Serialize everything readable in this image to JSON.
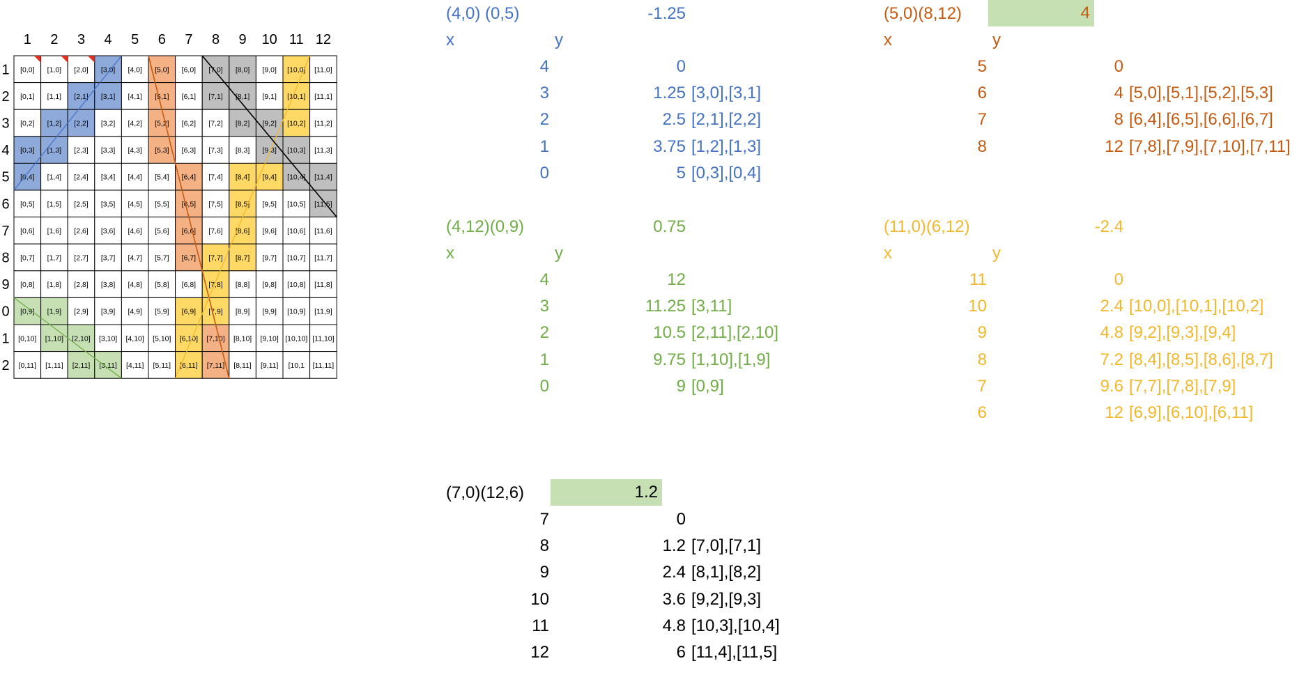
{
  "grid": {
    "cols": [
      "1",
      "2",
      "3",
      "4",
      "5",
      "6",
      "7",
      "8",
      "9",
      "10",
      "11",
      "12"
    ],
    "rows": [
      "1",
      "2",
      "3",
      "4",
      "5",
      "6",
      "7",
      "8",
      "9",
      "0",
      "1",
      "2"
    ],
    "cells": [
      [
        "[0,0]",
        "[1,0]",
        "[2,0]",
        "[3,0]",
        "[4,0]",
        "[5,0]",
        "[6,0]",
        "[7,0]",
        "[8,0]",
        "[9,0]",
        "[10,0]",
        "[11,0]"
      ],
      [
        "[0,1]",
        "[1,1]",
        "[2,1]",
        "[3,1]",
        "[4,1]",
        "[5,1]",
        "[6,1]",
        "[7,1]",
        "[8,1]",
        "[9,1]",
        "[10,1]",
        "[11,1]"
      ],
      [
        "[0,2]",
        "[1,2]",
        "[2,2]",
        "[3,2]",
        "[4,2]",
        "[5,2]",
        "[6,2]",
        "[7,2]",
        "[8,2]",
        "[9,2]",
        "[10,2]",
        "[11,2]"
      ],
      [
        "[0,3]",
        "[1,3]",
        "[2,3]",
        "[3,3]",
        "[4,3]",
        "[5,3]",
        "[6,3]",
        "[7,3]",
        "[8,3]",
        "[9,3]",
        "[10,3]",
        "[11,3]"
      ],
      [
        "[0,4]",
        "[1,4]",
        "[2,4]",
        "[3,4]",
        "[4,4]",
        "[5,4]",
        "[6,4]",
        "[7,4]",
        "[8,4]",
        "[9,4]",
        "[10,4]",
        "[11,4]"
      ],
      [
        "[0,5]",
        "[1,5]",
        "[2,5]",
        "[3,5]",
        "[4,5]",
        "[5,5]",
        "[6,5]",
        "[7,5]",
        "[8,5]",
        "[9,5]",
        "[10,5]",
        "[11,5]"
      ],
      [
        "[0,6]",
        "[1,6]",
        "[2,6]",
        "[3,6]",
        "[4,6]",
        "[5,6]",
        "[6,6]",
        "[7,6]",
        "[8,6]",
        "[9,6]",
        "[10,6]",
        "[11,6]"
      ],
      [
        "[0,7]",
        "[1,7]",
        "[2,7]",
        "[3,7]",
        "[4,7]",
        "[5,7]",
        "[6,7]",
        "[7,7]",
        "[8,7]",
        "[9,7]",
        "[10,7]",
        "[11,7]"
      ],
      [
        "[0,8]",
        "[1,8]",
        "[2,8]",
        "[3,8]",
        "[4,8]",
        "[5,8]",
        "[6,8]",
        "[7,8]",
        "[8,8]",
        "[9,8]",
        "[10,8]",
        "[11,8]"
      ],
      [
        "[0,9]",
        "[1,9]",
        "[2,9]",
        "[3,9]",
        "[4,9]",
        "[5,9]",
        "[6,9]",
        "[7,9]",
        "[8,9]",
        "[9,9]",
        "[10,9]",
        "[11,9]"
      ],
      [
        "[0,10]",
        "[1,10]",
        "[2,10]",
        "[3,10]",
        "[4,10]",
        "[5,10]",
        "[6,10]",
        "[7,10]",
        "[8,10]",
        "[9,10]",
        "[10,10]",
        "[11,10]"
      ],
      [
        "[0,11]",
        "[1,11]",
        "[2,11]",
        "[3,11]",
        "[4,11]",
        "[5,11]",
        "[6,11]",
        "[7,11]",
        "[8,11]",
        "[9,11]",
        "[10,1",
        "[11,11]"
      ]
    ]
  },
  "colors": {
    "blue_text": "#4472c4",
    "blue_fill": "#8eaadb",
    "orange_text": "#c55a11",
    "orange_fill": "#f4b183",
    "green_text": "#70ad47",
    "green_fill": "#c6e0b4",
    "yellow_text": "#f1b82d",
    "yellow_fill": "#ffd966",
    "gray_fill": "#bfbfbf",
    "black_text": "#000000",
    "marker_red": "#e03020"
  },
  "blocks": {
    "blue": {
      "header": "(4,0) (0,5)",
      "slope": "-1.25",
      "x_label": "x",
      "y_label": "y",
      "rows": [
        {
          "x": "4",
          "y": "0",
          "cells": ""
        },
        {
          "x": "3",
          "y": "1.25",
          "cells": "[3,0],[3,1]"
        },
        {
          "x": "2",
          "y": "2.5",
          "cells": "[2,1],[2,2]"
        },
        {
          "x": "1",
          "y": "3.75",
          "cells": "[1,2],[1,3]"
        },
        {
          "x": "0",
          "y": "5",
          "cells": "[0,3],[0,4]"
        }
      ]
    },
    "orange": {
      "header": "(5,0)(8,12)",
      "slope": "4",
      "x_label": "x",
      "y_label": "y",
      "rows": [
        {
          "x": "5",
          "y": "0",
          "cells": ""
        },
        {
          "x": "6",
          "y": "4",
          "cells": "[5,0],[5,1],[5,2],[5,3]"
        },
        {
          "x": "7",
          "y": "8",
          "cells": "[6,4],[6,5],[6,6],[6,7]"
        },
        {
          "x": "8",
          "y": "12",
          "cells": "[7,8],[7,9],[7,10],[7,11]"
        }
      ]
    },
    "green": {
      "header": "(4,12)(0,9)",
      "slope": "0.75",
      "x_label": "x",
      "y_label": "y",
      "rows": [
        {
          "x": "4",
          "y": "12",
          "cells": ""
        },
        {
          "x": "3",
          "y": "11.25",
          "cells": "[3,11]"
        },
        {
          "x": "2",
          "y": "10.5",
          "cells": "[2,11],[2,10]"
        },
        {
          "x": "1",
          "y": "9.75",
          "cells": "[1,10],[1,9]"
        },
        {
          "x": "0",
          "y": "9",
          "cells": "[0,9]"
        }
      ]
    },
    "yellow": {
      "header": "(11,0)(6,12)",
      "slope": "-2.4",
      "x_label": "x",
      "y_label": "y",
      "rows": [
        {
          "x": "11",
          "y": "0",
          "cells": ""
        },
        {
          "x": "10",
          "y": "2.4",
          "cells": "[10,0],[10,1],[10,2]"
        },
        {
          "x": "9",
          "y": "4.8",
          "cells": "[9,2],[9,3],[9,4]"
        },
        {
          "x": "8",
          "y": "7.2",
          "cells": "[8,4],[8,5],[8,6],[8,7]"
        },
        {
          "x": "7",
          "y": "9.6",
          "cells": "[7,7],[7,8],[7,9]"
        },
        {
          "x": "6",
          "y": "12",
          "cells": "[6,9],[6,10],[6,11]"
        }
      ]
    },
    "black": {
      "header": "(7,0)(12,6)",
      "slope": "1.2",
      "rows": [
        {
          "x": "7",
          "y": "0",
          "cells": ""
        },
        {
          "x": "8",
          "y": "1.2",
          "cells": "[7,0],[7,1]"
        },
        {
          "x": "9",
          "y": "2.4",
          "cells": "[8,1],[8,2]"
        },
        {
          "x": "10",
          "y": "3.6",
          "cells": "[9,2],[9,3]"
        },
        {
          "x": "11",
          "y": "4.8",
          "cells": "[10,3],[10,4]"
        },
        {
          "x": "12",
          "y": "6",
          "cells": "[11,4],[11,5]"
        }
      ]
    }
  }
}
